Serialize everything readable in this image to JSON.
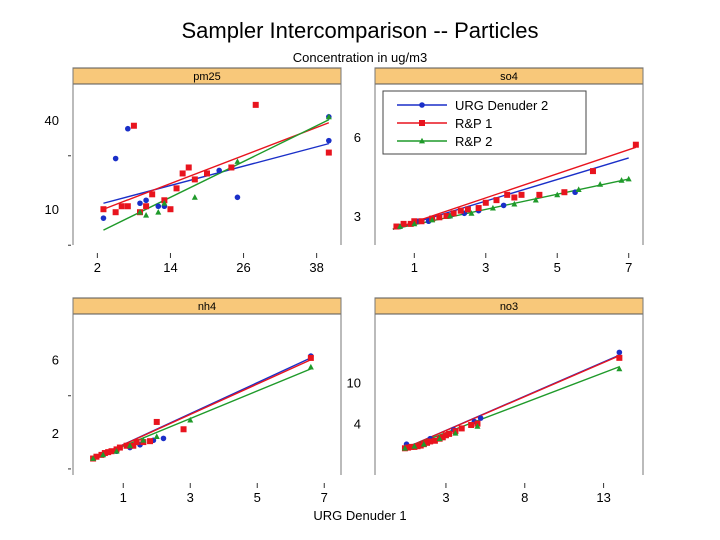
{
  "title": "Sampler Intercomparison -- Particles",
  "top_label": "Concentration in ug/m3",
  "xlabel": "URG Denuder 1",
  "colors": {
    "urg2": "#1a2fc8",
    "rp1": "#e8141e",
    "rp2": "#1f9a2a",
    "strip": "#f8c87a"
  },
  "legend": {
    "entries": [
      {
        "key": "urg2",
        "name": "URG Denuder 2",
        "marker": "circle"
      },
      {
        "key": "rp1",
        "name": "R&P 1",
        "marker": "square"
      },
      {
        "key": "rp2",
        "name": "R&P 2",
        "marker": "triangle"
      }
    ]
  },
  "chart_data": [
    {
      "type": "scatter",
      "panel": "pm25",
      "xlim": [
        -2,
        42
      ],
      "ylim": [
        -2,
        52
      ],
      "xticks": [
        "2",
        "14",
        "26",
        "38"
      ],
      "xtick_values": [
        2,
        14,
        26,
        38
      ],
      "yticks": [
        "10",
        "40"
      ],
      "ytick_values": [
        10,
        40
      ],
      "series": [
        {
          "name": "URG Denuder 2",
          "key": "urg2",
          "points": [
            [
              3,
              7
            ],
            [
              5,
              27
            ],
            [
              7,
              37
            ],
            [
              9,
              12
            ],
            [
              10,
              13
            ],
            [
              12,
              11
            ],
            [
              13,
              11
            ],
            [
              22,
              23
            ],
            [
              25,
              14
            ],
            [
              40,
              33
            ],
            [
              40,
              41
            ]
          ],
          "fit": [
            [
              3,
              12
            ],
            [
              40,
              32
            ]
          ]
        },
        {
          "name": "R&P 1",
          "key": "rp1",
          "points": [
            [
              3,
              10
            ],
            [
              5,
              9
            ],
            [
              6,
              11
            ],
            [
              7,
              11
            ],
            [
              8,
              38
            ],
            [
              9,
              9
            ],
            [
              10,
              11
            ],
            [
              11,
              15
            ],
            [
              13,
              13
            ],
            [
              14,
              10
            ],
            [
              15,
              17
            ],
            [
              16,
              22
            ],
            [
              17,
              24
            ],
            [
              18,
              20
            ],
            [
              20,
              22
            ],
            [
              24,
              24
            ],
            [
              28,
              45
            ],
            [
              40,
              29
            ]
          ],
          "fit": [
            [
              3,
              10
            ],
            [
              40,
              39
            ]
          ]
        },
        {
          "name": "R&P 2",
          "key": "rp2",
          "points": [
            [
              9,
              9
            ],
            [
              10,
              8
            ],
            [
              12,
              9
            ],
            [
              13,
              12
            ],
            [
              18,
              14
            ],
            [
              25,
              26
            ],
            [
              40,
              41
            ]
          ],
          "fit": [
            [
              3,
              3
            ],
            [
              40,
              40
            ]
          ]
        }
      ]
    },
    {
      "type": "scatter",
      "panel": "so4",
      "xlim": [
        -0.1,
        7.4
      ],
      "ylim": [
        1.9,
        8.0
      ],
      "xticks": [
        "1",
        "3",
        "5",
        "7"
      ],
      "xtick_values": [
        1,
        3,
        5,
        7
      ],
      "yticks": [
        "3",
        "6"
      ],
      "ytick_values": [
        3,
        6
      ],
      "series": [
        {
          "name": "URG Denuder 2",
          "key": "urg2",
          "points": [
            [
              0.6,
              2.6
            ],
            [
              0.9,
              2.7
            ],
            [
              1.1,
              2.8
            ],
            [
              1.4,
              2.8
            ],
            [
              2.0,
              3.0
            ],
            [
              2.4,
              3.1
            ],
            [
              2.8,
              3.2
            ],
            [
              3.5,
              3.4
            ],
            [
              5.5,
              3.9
            ]
          ],
          "fit": [
            [
              0.4,
              2.5
            ],
            [
              7.0,
              5.2
            ]
          ]
        },
        {
          "name": "R&P 1",
          "key": "rp1",
          "points": [
            [
              0.5,
              2.6
            ],
            [
              0.7,
              2.7
            ],
            [
              0.9,
              2.7
            ],
            [
              1.0,
              2.8
            ],
            [
              1.2,
              2.8
            ],
            [
              1.5,
              2.9
            ],
            [
              1.7,
              2.95
            ],
            [
              1.9,
              3.0
            ],
            [
              2.1,
              3.1
            ],
            [
              2.3,
              3.2
            ],
            [
              2.5,
              3.25
            ],
            [
              2.8,
              3.3
            ],
            [
              3.0,
              3.5
            ],
            [
              3.3,
              3.6
            ],
            [
              3.6,
              3.8
            ],
            [
              3.8,
              3.7
            ],
            [
              4.0,
              3.8
            ],
            [
              4.5,
              3.8
            ],
            [
              5.2,
              3.9
            ],
            [
              6.0,
              4.7
            ],
            [
              7.2,
              5.7
            ]
          ],
          "fit": [
            [
              0.4,
              2.5
            ],
            [
              7.2,
              5.6
            ]
          ]
        },
        {
          "name": "R&P 2",
          "key": "rp2",
          "points": [
            [
              0.6,
              2.6
            ],
            [
              1.0,
              2.7
            ],
            [
              1.5,
              2.85
            ],
            [
              2.0,
              3.0
            ],
            [
              2.6,
              3.1
            ],
            [
              3.2,
              3.3
            ],
            [
              3.8,
              3.45
            ],
            [
              4.4,
              3.6
            ],
            [
              5.0,
              3.8
            ],
            [
              5.6,
              4.0
            ],
            [
              6.2,
              4.2
            ],
            [
              6.8,
              4.35
            ],
            [
              7.0,
              4.4
            ]
          ],
          "fit": [
            [
              0.4,
              2.5
            ],
            [
              7.0,
              4.4
            ]
          ]
        }
      ]
    },
    {
      "type": "scatter",
      "panel": "nh4",
      "xlim": [
        -0.5,
        7.5
      ],
      "ylim": [
        -0.3,
        8.5
      ],
      "xticks": [
        "1",
        "3",
        "5",
        "7"
      ],
      "xtick_values": [
        1,
        3,
        5,
        7
      ],
      "yticks": [
        "2",
        "6"
      ],
      "ytick_values": [
        2,
        6
      ],
      "series": [
        {
          "name": "URG Denuder 2",
          "key": "urg2",
          "points": [
            [
              0.2,
              0.7
            ],
            [
              0.5,
              0.9
            ],
            [
              0.8,
              1.0
            ],
            [
              1.2,
              1.2
            ],
            [
              1.5,
              1.35
            ],
            [
              1.9,
              1.6
            ],
            [
              2.2,
              1.7
            ],
            [
              6.6,
              6.2
            ]
          ],
          "fit": [
            [
              0.1,
              0.6
            ],
            [
              6.6,
              6.1
            ]
          ]
        },
        {
          "name": "R&P 1",
          "key": "rp1",
          "points": [
            [
              0.1,
              0.6
            ],
            [
              0.2,
              0.7
            ],
            [
              0.35,
              0.8
            ],
            [
              0.45,
              0.9
            ],
            [
              0.55,
              0.95
            ],
            [
              0.65,
              1.0
            ],
            [
              0.8,
              1.1
            ],
            [
              0.9,
              1.2
            ],
            [
              1.1,
              1.3
            ],
            [
              1.3,
              1.3
            ],
            [
              1.4,
              1.5
            ],
            [
              1.6,
              1.5
            ],
            [
              1.8,
              1.55
            ],
            [
              2.0,
              2.6
            ],
            [
              2.8,
              2.2
            ],
            [
              6.6,
              6.1
            ]
          ],
          "fit": [
            [
              0.1,
              0.6
            ],
            [
              6.6,
              6.0
            ]
          ]
        },
        {
          "name": "R&P 2",
          "key": "rp2",
          "points": [
            [
              0.1,
              0.6
            ],
            [
              0.4,
              0.8
            ],
            [
              0.8,
              1.0
            ],
            [
              1.2,
              1.3
            ],
            [
              1.6,
              1.6
            ],
            [
              2.0,
              1.8
            ],
            [
              3.0,
              2.7
            ],
            [
              6.6,
              5.6
            ]
          ],
          "fit": [
            [
              0.1,
              0.6
            ],
            [
              6.6,
              5.5
            ]
          ]
        }
      ]
    },
    {
      "type": "scatter",
      "panel": "no3",
      "xlim": [
        -1.5,
        15.5
      ],
      "ylim": [
        -3.5,
        20.0
      ],
      "xticks": [
        "3",
        "8",
        "13"
      ],
      "xtick_values": [
        3,
        8,
        13
      ],
      "yticks": [
        "4",
        "10"
      ],
      "ytick_values": [
        4,
        10
      ],
      "series": [
        {
          "name": "URG Denuder 2",
          "key": "urg2",
          "points": [
            [
              0.5,
              1.0
            ],
            [
              1.0,
              0.7
            ],
            [
              1.5,
              1.0
            ],
            [
              2.0,
              1.8
            ],
            [
              3.5,
              3.1
            ],
            [
              4.8,
              4.3
            ],
            [
              5.2,
              4.8
            ],
            [
              14.0,
              14.4
            ]
          ],
          "fit": [
            [
              0.4,
              0.4
            ],
            [
              14.0,
              14.0
            ]
          ]
        },
        {
          "name": "R&P 1",
          "key": "rp1",
          "points": [
            [
              0.4,
              0.4
            ],
            [
              0.6,
              0.5
            ],
            [
              0.8,
              0.6
            ],
            [
              1.0,
              0.6
            ],
            [
              1.2,
              0.7
            ],
            [
              1.4,
              0.8
            ],
            [
              1.6,
              1.0
            ],
            [
              1.8,
              1.2
            ],
            [
              2.0,
              1.4
            ],
            [
              2.3,
              1.5
            ],
            [
              2.6,
              1.8
            ],
            [
              2.8,
              2.0
            ],
            [
              3.0,
              2.3
            ],
            [
              3.2,
              2.5
            ],
            [
              3.6,
              2.9
            ],
            [
              4.0,
              3.3
            ],
            [
              4.6,
              3.8
            ],
            [
              5.0,
              4.0
            ],
            [
              14.0,
              13.6
            ]
          ],
          "fit": [
            [
              0.4,
              0.4
            ],
            [
              14.0,
              13.9
            ]
          ]
        },
        {
          "name": "R&P 2",
          "key": "rp2",
          "points": [
            [
              0.4,
              0.4
            ],
            [
              1.0,
              0.7
            ],
            [
              1.6,
              1.0
            ],
            [
              2.6,
              1.8
            ],
            [
              3.6,
              2.6
            ],
            [
              5.0,
              3.6
            ],
            [
              14.0,
              12.0
            ]
          ],
          "fit": [
            [
              0.4,
              0.4
            ],
            [
              14.0,
              12.3
            ]
          ]
        }
      ]
    }
  ]
}
